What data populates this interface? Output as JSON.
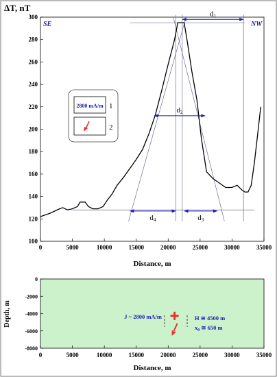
{
  "chart_data": [
    {
      "type": "line",
      "title": "",
      "ylabel": "ΔT, nT",
      "xlabel": "Distance, m",
      "xlim": [
        0,
        35000
      ],
      "ylim": [
        100,
        300
      ],
      "x_ticks": [
        0,
        5000,
        10000,
        15000,
        20000,
        25000,
        30000,
        35000
      ],
      "y_ticks": [
        100,
        120,
        140,
        160,
        180,
        200,
        220,
        240,
        260,
        280,
        300
      ],
      "direction_labels": {
        "left": "SE",
        "right": "NW"
      },
      "series": [
        {
          "values_xy": [
            [
              0,
              122
            ],
            [
              1500,
              125
            ],
            [
              3000,
              129
            ],
            [
              3500,
              130
            ],
            [
              4200,
              128
            ],
            [
              5000,
              129
            ],
            [
              5800,
              131
            ],
            [
              6200,
              135
            ],
            [
              7000,
              135
            ],
            [
              7500,
              131
            ],
            [
              8200,
              129
            ],
            [
              9000,
              129
            ],
            [
              9800,
              131
            ],
            [
              10500,
              137
            ],
            [
              11200,
              142
            ],
            [
              12000,
              150
            ],
            [
              13000,
              157
            ],
            [
              14000,
              165
            ],
            [
              15000,
              173
            ],
            [
              16000,
              182
            ],
            [
              17000,
              196
            ],
            [
              18000,
              213
            ],
            [
              19000,
              235
            ],
            [
              20000,
              258
            ],
            [
              21000,
              280
            ],
            [
              21500,
              295
            ],
            [
              22500,
              295
            ],
            [
              23000,
              278
            ],
            [
              23700,
              252
            ],
            [
              24500,
              226
            ],
            [
              25200,
              192
            ],
            [
              26000,
              162
            ],
            [
              27000,
              156
            ],
            [
              28000,
              152
            ],
            [
              29000,
              148
            ],
            [
              30000,
              148
            ],
            [
              30800,
              150
            ],
            [
              31500,
              146
            ],
            [
              32000,
              144
            ],
            [
              32500,
              144
            ],
            [
              33000,
              150
            ],
            [
              33500,
              170
            ],
            [
              34000,
              195
            ],
            [
              34500,
              220
            ]
          ]
        }
      ],
      "distances": {
        "d1": {
          "label": "d",
          "sub": "1",
          "from": 22200,
          "to": 31800,
          "y": 298
        },
        "d2": {
          "label": "d",
          "sub": "2",
          "from": 17800,
          "to": 25800,
          "y": 212
        },
        "d3": {
          "label": "d",
          "sub": "3",
          "from": 22500,
          "to": 27700,
          "y": 127
        },
        "d4": {
          "label": "d",
          "sub": "4",
          "from": 14000,
          "to": 21200,
          "y": 127
        }
      },
      "guide_lines": {
        "top_horizontal": {
          "y": 295,
          "from": 14000,
          "to": 32000
        },
        "baseline": {
          "y": 128,
          "from": 5000,
          "to": 33500
        },
        "tangents": [
          {
            "from": [
              13800,
              118
            ],
            "to": [
              22800,
              300
            ]
          },
          {
            "from": [
              20800,
              300
            ],
            "to": [
              28800,
              118
            ]
          }
        ],
        "verticals": [
          21200,
          22200,
          31800
        ]
      },
      "legend": [
        {
          "type": "box-label",
          "text": "2800 mA/m",
          "num": "1"
        },
        {
          "type": "arrow",
          "num": "2",
          "color": "#e8322c"
        }
      ],
      "colors": {
        "curve": "#000000",
        "guides": "#6b6b9c",
        "annotations": "#1f1fb3",
        "arrow": "#e8322c"
      }
    },
    {
      "type": "scatter",
      "ylabel": "Depth, m",
      "xlabel": "Distance, m",
      "xlim": [
        0,
        35000
      ],
      "ylim": [
        -8000,
        0
      ],
      "x_ticks": [
        0,
        5000,
        10000,
        15000,
        20000,
        25000,
        30000,
        35000
      ],
      "y_ticks": [
        0,
        -2000,
        -4000,
        -6000,
        -8000
      ],
      "background": "#ccf2cc",
      "source": {
        "x": 21000,
        "depth": -4500
      },
      "annotations": {
        "magnetization": "J ~ 2800 mA/m",
        "depth": "H ≅ 4500 m",
        "offset_var": "x",
        "offset_sub": "0",
        "offset_value": " ≅ 650 m"
      },
      "colors": {
        "marker": "#e8322c",
        "text": "#1f1fb3"
      }
    }
  ]
}
